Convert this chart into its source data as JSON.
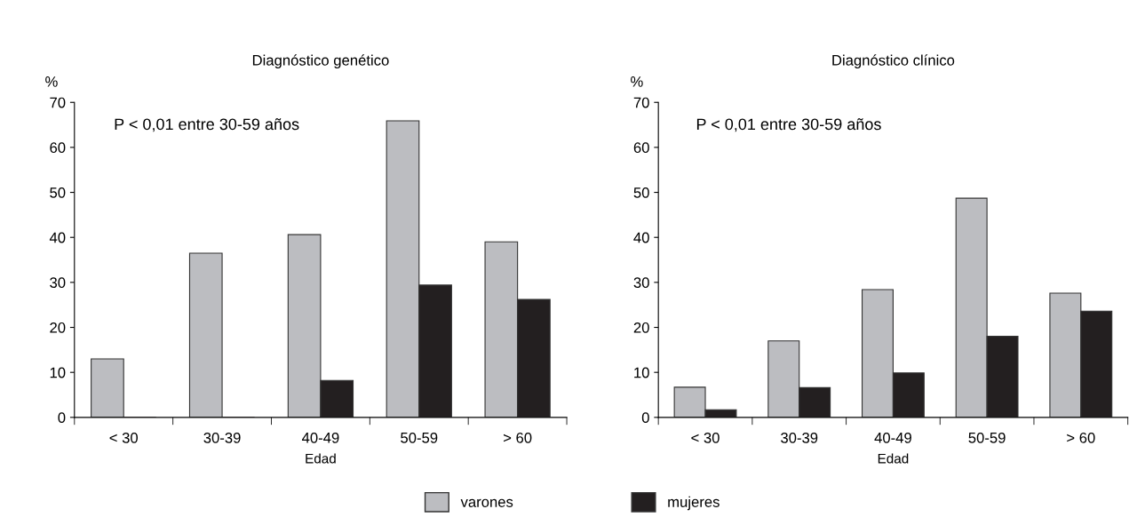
{
  "chart_data": [
    {
      "type": "bar",
      "title": "Diagnóstico genético",
      "ylabel": "%",
      "xlabel": "Edad",
      "categories": [
        "< 30",
        "30-39",
        "40-49",
        "50-59",
        "> 60"
      ],
      "series": [
        {
          "name": "varones",
          "color": "#bcbdc1",
          "values": [
            13.0,
            36.5,
            40.6,
            65.9,
            39.0
          ]
        },
        {
          "name": "mujeres",
          "color": "#231f20",
          "values": [
            0,
            0,
            8.2,
            29.4,
            26.2
          ]
        }
      ],
      "ylim": [
        0,
        70
      ],
      "yticks": [
        0,
        10,
        20,
        30,
        40,
        50,
        60,
        70
      ],
      "grid": false,
      "legend": "bottom",
      "annotations": [
        "P < 0,01 entre 30-59 años"
      ]
    },
    {
      "type": "bar",
      "title": "Diagnóstico clínico",
      "ylabel": "%",
      "xlabel": "Edad",
      "categories": [
        "< 30",
        "30-39",
        "40-49",
        "50-59",
        "> 60"
      ],
      "series": [
        {
          "color": "#bcbdc1",
          "values": [
            6.7,
            17.0,
            28.4,
            48.7,
            27.6
          ]
        },
        {
          "color": "#231f20",
          "values": [
            1.7,
            6.6,
            9.9,
            18.0,
            23.6
          ]
        }
      ],
      "ylim": [
        0,
        70
      ],
      "yticks": [
        0,
        10,
        20,
        30,
        40,
        50,
        60,
        70
      ],
      "grid": false,
      "annotations": [
        "P < 0,01 entre 30-59 años"
      ]
    }
  ]
}
